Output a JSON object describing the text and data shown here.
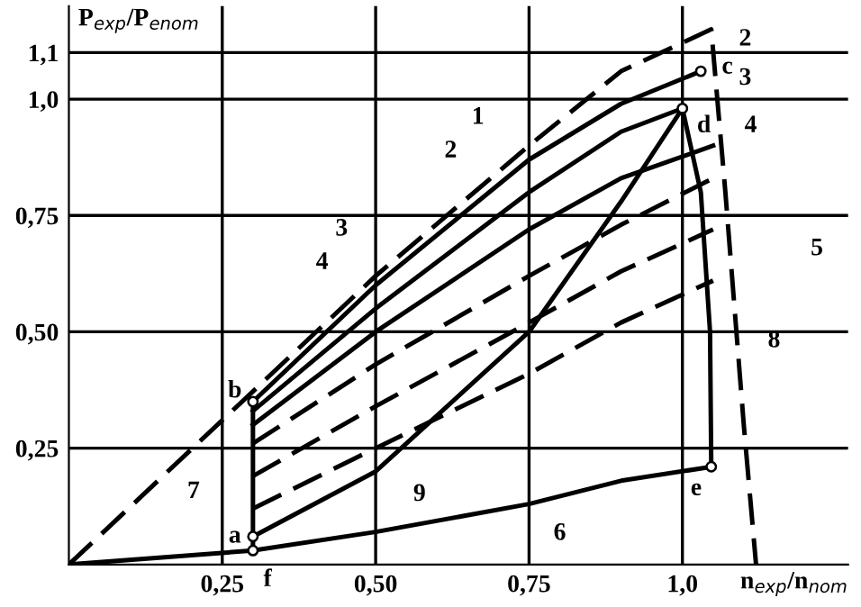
{
  "chart_data": {
    "type": "line",
    "ylabel": "P$_{exp}$/P$_{enom}$",
    "xlabel": "n$_{exp}$/n$_{nom}$",
    "xlim": [
      0,
      1.27
    ],
    "ylim": [
      0,
      1.2
    ],
    "xticks": [
      {
        "value": 0.25,
        "label": "0,25"
      },
      {
        "value": 0.5,
        "label": "0,50"
      },
      {
        "value": 0.75,
        "label": "0,75"
      },
      {
        "value": 1.0,
        "label": "1,0"
      }
    ],
    "yticks": [
      {
        "value": 0.25,
        "label": "0,25"
      },
      {
        "value": 0.5,
        "label": "0,50"
      },
      {
        "value": 0.75,
        "label": "0,75"
      },
      {
        "value": 1.0,
        "label": "1,0"
      },
      {
        "value": 1.1,
        "label": "1,1"
      }
    ],
    "grid": true,
    "marker": "none",
    "series": [
      {
        "color": "#000000",
        "line_style": "dashed",
        "x": [
          0,
          0.25,
          0.5,
          0.75,
          0.9,
          1.047,
          1.07,
          1.1,
          1.12
        ],
        "values": [
          0,
          0.31,
          0.62,
          0.9,
          1.06,
          1.15,
          0.8,
          0.3,
          0
        ]
      },
      {
        "color": "#000000",
        "line_style": "solid",
        "x": [
          0.3,
          0.5,
          0.75,
          0.9,
          1.03
        ],
        "values": [
          0.35,
          0.6,
          0.87,
          0.99,
          1.06
        ]
      },
      {
        "color": "#000000",
        "line_style": "solid",
        "x": [
          0.3,
          0.5,
          0.75,
          0.9,
          1.0
        ],
        "values": [
          0.33,
          0.55,
          0.8,
          0.93,
          0.98
        ]
      },
      {
        "color": "#000000",
        "line_style": "solid",
        "x": [
          0.3,
          0.5,
          0.75,
          0.9,
          1.05
        ],
        "values": [
          0.3,
          0.5,
          0.72,
          0.83,
          0.9
        ]
      },
      {
        "color": "#000000",
        "line_style": "dashed",
        "x": [
          0.3,
          0.5,
          0.75,
          0.9,
          1.05
        ],
        "values": [
          0.26,
          0.43,
          0.62,
          0.73,
          0.83
        ]
      },
      {
        "color": "#000000",
        "line_style": "dashed",
        "x": [
          0.3,
          0.5,
          0.75,
          0.9,
          1.05
        ],
        "values": [
          0.19,
          0.34,
          0.52,
          0.63,
          0.72
        ]
      },
      {
        "color": "#000000",
        "line_style": "dashed",
        "x": [
          0.3,
          0.5,
          0.75,
          0.9,
          1.05
        ],
        "values": [
          0.12,
          0.25,
          0.41,
          0.52,
          0.61
        ]
      },
      {
        "color": "#000000",
        "line_style": "solid",
        "x": [
          0,
          0.3,
          0.5,
          0.75,
          0.9,
          1.047
        ],
        "values": [
          0,
          0.03,
          0.07,
          0.13,
          0.18,
          0.21
        ]
      },
      {
        "color": "#000000",
        "line_style": "solid",
        "x": [
          0.3,
          0.3
        ],
        "values": [
          0.03,
          0.35
        ]
      },
      {
        "color": "#000000",
        "line_style": "solid",
        "x": [
          1.0,
          1.03,
          1.045,
          1.047
        ],
        "values": [
          0.98,
          0.8,
          0.5,
          0.21
        ]
      },
      {
        "color": "#000000",
        "line_style": "solid",
        "x": [
          0.3,
          0.5,
          0.75,
          0.9,
          1.0
        ],
        "values": [
          0.06,
          0.2,
          0.5,
          0.78,
          0.98
        ]
      },
      {
        "type": "scatter",
        "marker": "circle",
        "color": "#000000",
        "x": [
          0.3,
          0.3,
          1.03,
          1.0,
          1.047,
          0.3
        ],
        "values": [
          0.06,
          0.35,
          1.06,
          0.98,
          0.21,
          0.03
        ]
      }
    ],
    "annotations": [
      "1",
      "2",
      "3",
      "4",
      "5",
      "6",
      "7",
      "8",
      "9",
      "a",
      "b",
      "c",
      "d",
      "e",
      "f",
      "2",
      "3",
      "4"
    ]
  }
}
